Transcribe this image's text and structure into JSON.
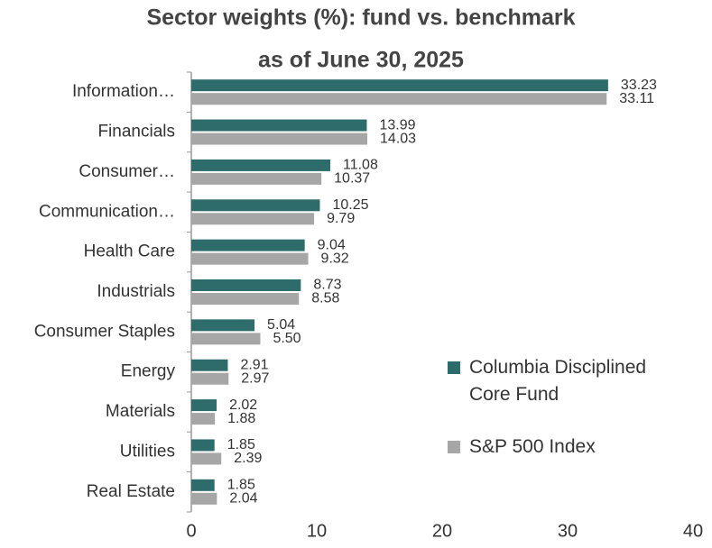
{
  "chart_data": {
    "type": "hbar",
    "title": "Sector weights (%): fund vs. benchmark",
    "subtitle": "as of June 30, 2025",
    "categories": [
      "Information…",
      "Financials",
      "Consumer…",
      "Communication…",
      "Health Care",
      "Industrials",
      "Consumer Staples",
      "Energy",
      "Materials",
      "Utilities",
      "Real Estate"
    ],
    "series": [
      {
        "name": "Columbia Disciplined Core Fund",
        "color": "#2e6b6b",
        "values": [
          33.23,
          13.99,
          11.08,
          10.25,
          9.04,
          8.73,
          5.04,
          2.91,
          2.02,
          1.85,
          1.85
        ],
        "value_labels": [
          "33.23",
          "13.99",
          "11.08",
          "10.25",
          "9.04",
          "8.73",
          "5.04",
          "2.91",
          "2.02",
          "1.85",
          "1.85"
        ]
      },
      {
        "name": "S&P 500 Index",
        "color": "#a6a6a6",
        "values": [
          33.11,
          14.03,
          10.37,
          9.79,
          9.32,
          8.58,
          5.5,
          2.97,
          1.88,
          2.39,
          2.04
        ],
        "value_labels": [
          "33.11",
          "14.03",
          "10.37",
          "9.79",
          "9.32",
          "8.58",
          "5.50",
          "2.97",
          "1.88",
          "2.39",
          "2.04"
        ]
      }
    ],
    "xlim": [
      0,
      40
    ],
    "xticks": [
      0,
      10,
      20,
      30,
      40
    ]
  }
}
